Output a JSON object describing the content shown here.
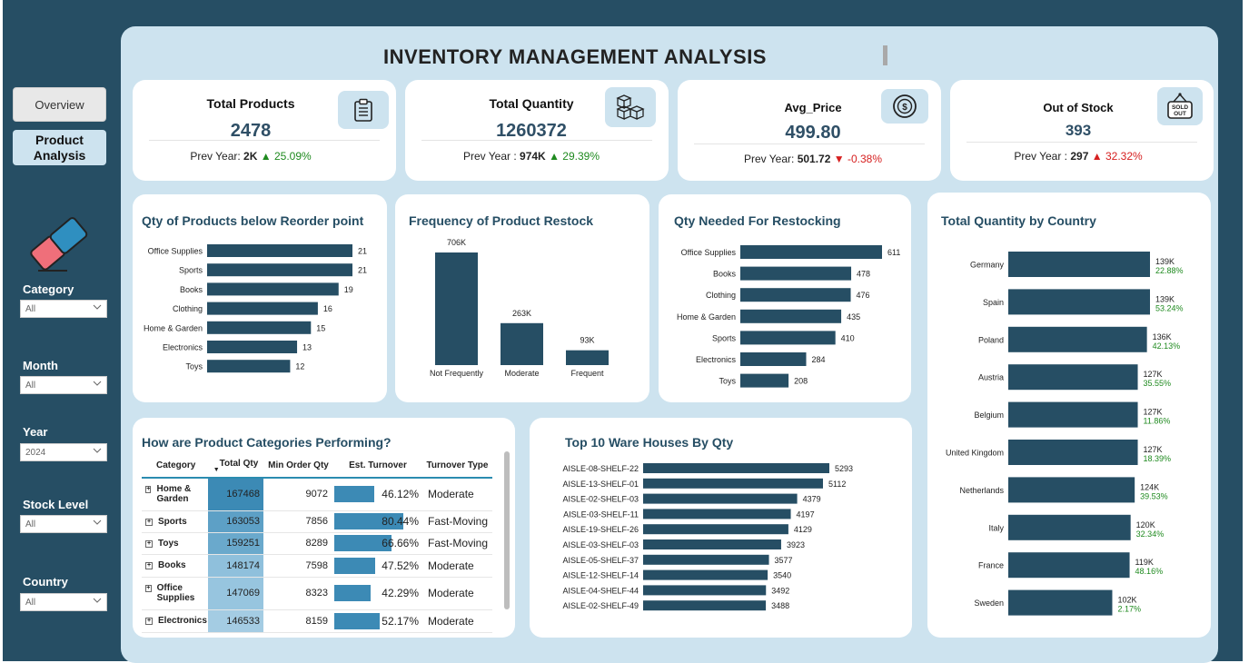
{
  "header": {
    "title": "INVENTORY MANAGEMENT ANALYSIS"
  },
  "sidebar": {
    "nav": [
      {
        "label": "Overview",
        "active": false
      },
      {
        "label": "Product Analysis",
        "active": true
      }
    ],
    "slicers": [
      {
        "label": "Category",
        "value": "All"
      },
      {
        "label": "Month",
        "value": "All"
      },
      {
        "label": "Year",
        "value": "2024"
      },
      {
        "label": "Stock Level",
        "value": "All"
      },
      {
        "label": "Country",
        "value": "All"
      }
    ]
  },
  "kpis": [
    {
      "title": "Total Products",
      "value": "2478",
      "prev_label": "Prev Year: ",
      "prev_value": "2K",
      "change": "25.09%",
      "direction": "up",
      "icon": "clipboard-icon"
    },
    {
      "title": "Total Quantity",
      "value": "1260372",
      "prev_label": "Prev Year : ",
      "prev_value": "974K",
      "change": "29.39%",
      "direction": "up",
      "icon": "boxes-icon"
    },
    {
      "title": "Avg_Price",
      "value": "499.80",
      "prev_label": "Prev Year: ",
      "prev_value": "501.72",
      "change": "-0.38%",
      "direction": "down",
      "icon": "coin-icon"
    },
    {
      "title": "Out of Stock",
      "value": "393",
      "prev_label": "Prev Year : ",
      "prev_value": "297",
      "change": "32.32%",
      "direction": "up",
      "icon": "sold-out-icon"
    }
  ],
  "colors": {
    "bar": "#264e64",
    "accent": "#3c8ab5",
    "up": "#1f8a1f",
    "down": "#d62020"
  },
  "chart_data": [
    {
      "type": "bar",
      "orientation": "horizontal",
      "title": "Qty of Products below Reorder point",
      "categories": [
        "Office Supplies",
        "Sports",
        "Books",
        "Clothing",
        "Home & Garden",
        "Electronics",
        "Toys"
      ],
      "values": [
        21,
        21,
        19,
        16,
        15,
        13,
        12
      ],
      "labels": [
        "21",
        "21",
        "19",
        "16",
        "15",
        "13",
        "12"
      ]
    },
    {
      "type": "bar",
      "orientation": "vertical",
      "title": "Frequency of Product Restock",
      "categories": [
        "Not Frequently",
        "Moderate",
        "Frequent"
      ],
      "values": [
        706000,
        263000,
        93000
      ],
      "labels": [
        "706K",
        "263K",
        "93K"
      ]
    },
    {
      "type": "bar",
      "orientation": "horizontal",
      "title": "Qty Needed For Restocking",
      "categories": [
        "Office Supplies",
        "Books",
        "Clothing",
        "Home & Garden",
        "Sports",
        "Electronics",
        "Toys"
      ],
      "values": [
        611,
        478,
        476,
        435,
        410,
        284,
        208
      ],
      "labels": [
        "611",
        "478",
        "476",
        "435",
        "410",
        "284",
        "208"
      ]
    },
    {
      "type": "bar",
      "orientation": "horizontal",
      "title": "Total Quantity by Country",
      "categories": [
        "Germany",
        "Spain",
        "Poland",
        "Austria",
        "Belgium",
        "United Kingdom",
        "Netherlands",
        "Italy",
        "France",
        "Sweden"
      ],
      "values": [
        139000,
        139000,
        136000,
        127000,
        127000,
        127000,
        124000,
        120000,
        119000,
        102000
      ],
      "labels": [
        "139K",
        "139K",
        "136K",
        "127K",
        "127K",
        "127K",
        "124K",
        "120K",
        "119K",
        "102K"
      ],
      "growth": [
        "22.88%",
        "53.24%",
        "42.13%",
        "35.55%",
        "11.86%",
        "18.39%",
        "39.53%",
        "32.34%",
        "48.16%",
        "2.17%"
      ]
    },
    {
      "type": "bar",
      "orientation": "horizontal",
      "title": "Top 10 Ware Houses By Qty",
      "categories": [
        "AISLE-08-SHELF-22",
        "AISLE-13-SHELF-01",
        "AISLE-02-SHELF-03",
        "AISLE-03-SHELF-11",
        "AISLE-19-SHELF-26",
        "AISLE-03-SHELF-03",
        "AISLE-05-SHELF-37",
        "AISLE-12-SHELF-14",
        "AISLE-04-SHELF-44",
        "AISLE-02-SHELF-49"
      ],
      "values": [
        5293,
        5112,
        4379,
        4197,
        4129,
        3923,
        3577,
        3540,
        3492,
        3488
      ],
      "labels": [
        "5293",
        "5112",
        "4379",
        "4197",
        "4129",
        "3923",
        "3577",
        "3540",
        "3492",
        "3488"
      ]
    },
    {
      "type": "table",
      "title": "How are Product Categories Performing?",
      "columns": [
        "Category",
        "Total Qty",
        "Min Order Qty",
        "Est. Turnover",
        "Turnover Type"
      ],
      "rows": [
        {
          "category": "Home & Garden",
          "total_qty": "167468",
          "min_order_qty": "9072",
          "est_turnover": "46.12%",
          "turnover_pct": 46.12,
          "turnover_type": "Moderate"
        },
        {
          "category": "Sports",
          "total_qty": "163053",
          "min_order_qty": "7856",
          "est_turnover": "80.44%",
          "turnover_pct": 80.44,
          "turnover_type": "Fast-Moving"
        },
        {
          "category": "Toys",
          "total_qty": "159251",
          "min_order_qty": "8289",
          "est_turnover": "66.66%",
          "turnover_pct": 66.66,
          "turnover_type": "Fast-Moving"
        },
        {
          "category": "Books",
          "total_qty": "148174",
          "min_order_qty": "7598",
          "est_turnover": "47.52%",
          "turnover_pct": 47.52,
          "turnover_type": "Moderate"
        },
        {
          "category": "Office Supplies",
          "total_qty": "147069",
          "min_order_qty": "8323",
          "est_turnover": "42.29%",
          "turnover_pct": 42.29,
          "turnover_type": "Moderate"
        },
        {
          "category": "Electronics",
          "total_qty": "146533",
          "min_order_qty": "8159",
          "est_turnover": "52.17%",
          "turnover_pct": 52.17,
          "turnover_type": "Moderate"
        }
      ]
    }
  ]
}
